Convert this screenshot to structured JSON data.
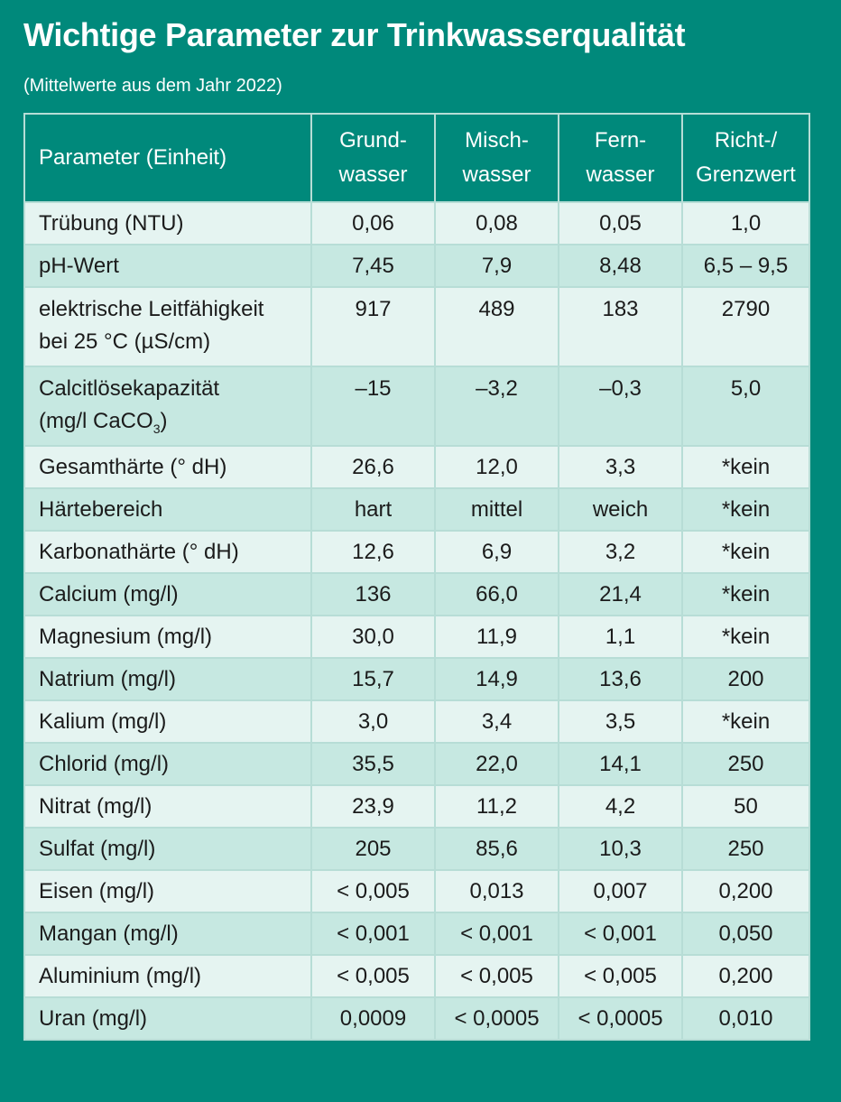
{
  "title": "Wichtige Parameter zur Trinkwasserqualität",
  "subtitle": "(Mittelwerte aus dem Jahr 2022)",
  "colors": {
    "background": "#00897b",
    "row_light": "#e5f4f1",
    "row_dark": "#c6e8e1"
  },
  "headers": {
    "param": "Parameter (Einheit)",
    "grund_1": "Grund-",
    "grund_2": "wasser",
    "misch_1": "Misch-",
    "misch_2": "wasser",
    "fern_1": "Fern-",
    "fern_2": "wasser",
    "grenz_1": "Richt-/",
    "grenz_2": "Grenzwert"
  },
  "rows": [
    {
      "param": "Trübung (NTU)",
      "grund": "0,06",
      "misch": "0,08",
      "fern": "0,05",
      "grenz": "1,0"
    },
    {
      "param": "pH-Wert",
      "grund": "7,45",
      "misch": "7,9",
      "fern": "8,48",
      "grenz": "6,5 – 9,5"
    },
    {
      "param_1": "elektrische Leitfähigkeit",
      "param_2": "bei 25 °C (µS/cm)",
      "grund": "917",
      "misch": "489",
      "fern": "183",
      "grenz": "2790"
    },
    {
      "param_1": "Calcitlösekapazität",
      "param_2a": "(mg/l CaCO",
      "param_2sub": "3",
      "param_2b": ")",
      "grund": "–15",
      "misch": "–3,2",
      "fern": "–0,3",
      "grenz": "5,0"
    },
    {
      "param": "Gesamthärte (° dH)",
      "grund": "26,6",
      "misch": "12,0",
      "fern": "3,3",
      "grenz": "*kein"
    },
    {
      "param": "Härtebereich",
      "grund": "hart",
      "misch": "mittel",
      "fern": "weich",
      "grenz": "*kein"
    },
    {
      "param": "Karbonathärte (° dH)",
      "grund": "12,6",
      "misch": "6,9",
      "fern": "3,2",
      "grenz": "*kein"
    },
    {
      "param": "Calcium (mg/l)",
      "grund": "136",
      "misch": "66,0",
      "fern": "21,4",
      "grenz": "*kein"
    },
    {
      "param": "Magnesium (mg/l)",
      "grund": "30,0",
      "misch": "11,9",
      "fern": "1,1",
      "grenz": "*kein"
    },
    {
      "param": "Natrium (mg/l)",
      "grund": "15,7",
      "misch": "14,9",
      "fern": "13,6",
      "grenz": "200"
    },
    {
      "param": "Kalium (mg/l)",
      "grund": "3,0",
      "misch": "3,4",
      "fern": "3,5",
      "grenz": "*kein"
    },
    {
      "param": "Chlorid (mg/l)",
      "grund": "35,5",
      "misch": "22,0",
      "fern": "14,1",
      "grenz": "250"
    },
    {
      "param": "Nitrat (mg/l)",
      "grund": "23,9",
      "misch": "11,2",
      "fern": "4,2",
      "grenz": "50"
    },
    {
      "param": "Sulfat (mg/l)",
      "grund": "205",
      "misch": "85,6",
      "fern": "10,3",
      "grenz": "250"
    },
    {
      "param": "Eisen (mg/l)",
      "grund": "< 0,005",
      "misch": "0,013",
      "fern": "0,007",
      "grenz": "0,200"
    },
    {
      "param": "Mangan (mg/l)",
      "grund": "< 0,001",
      "misch": "< 0,001",
      "fern": "< 0,001",
      "grenz": "0,050"
    },
    {
      "param": "Aluminium (mg/l)",
      "grund": "< 0,005",
      "misch": "< 0,005",
      "fern": "< 0,005",
      "grenz": "0,200"
    },
    {
      "param": "Uran (mg/l)",
      "grund": "0,0009",
      "misch": "< 0,0005",
      "fern": "< 0,0005",
      "grenz": "0,010"
    }
  ]
}
